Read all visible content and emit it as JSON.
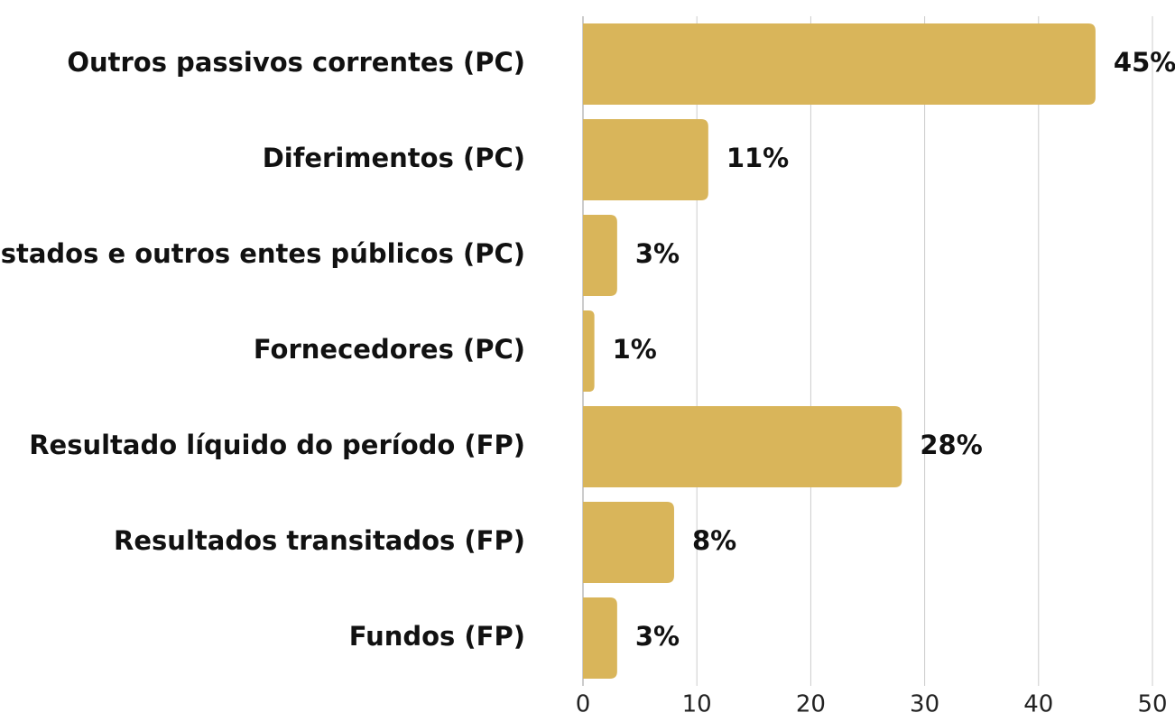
{
  "chart_data": {
    "type": "bar",
    "orientation": "horizontal",
    "categories": [
      "Outros passivos correntes (PC)",
      "Diferimentos (PC)",
      "Estados e outros entes públicos (PC)",
      "Fornecedores (PC)",
      "Resultado líquido do período (FP)",
      "Resultados transitados (FP)",
      "Fundos (FP)"
    ],
    "values": [
      45,
      11,
      3,
      1,
      28,
      8,
      3
    ],
    "value_labels": [
      "45%",
      "11%",
      "3%",
      "1%",
      "28%",
      "8%",
      "3%"
    ],
    "color": "#d9b55a",
    "xlim": [
      0,
      50
    ],
    "xticks": [
      0,
      10,
      20,
      30,
      40,
      50
    ],
    "grid": true
  }
}
